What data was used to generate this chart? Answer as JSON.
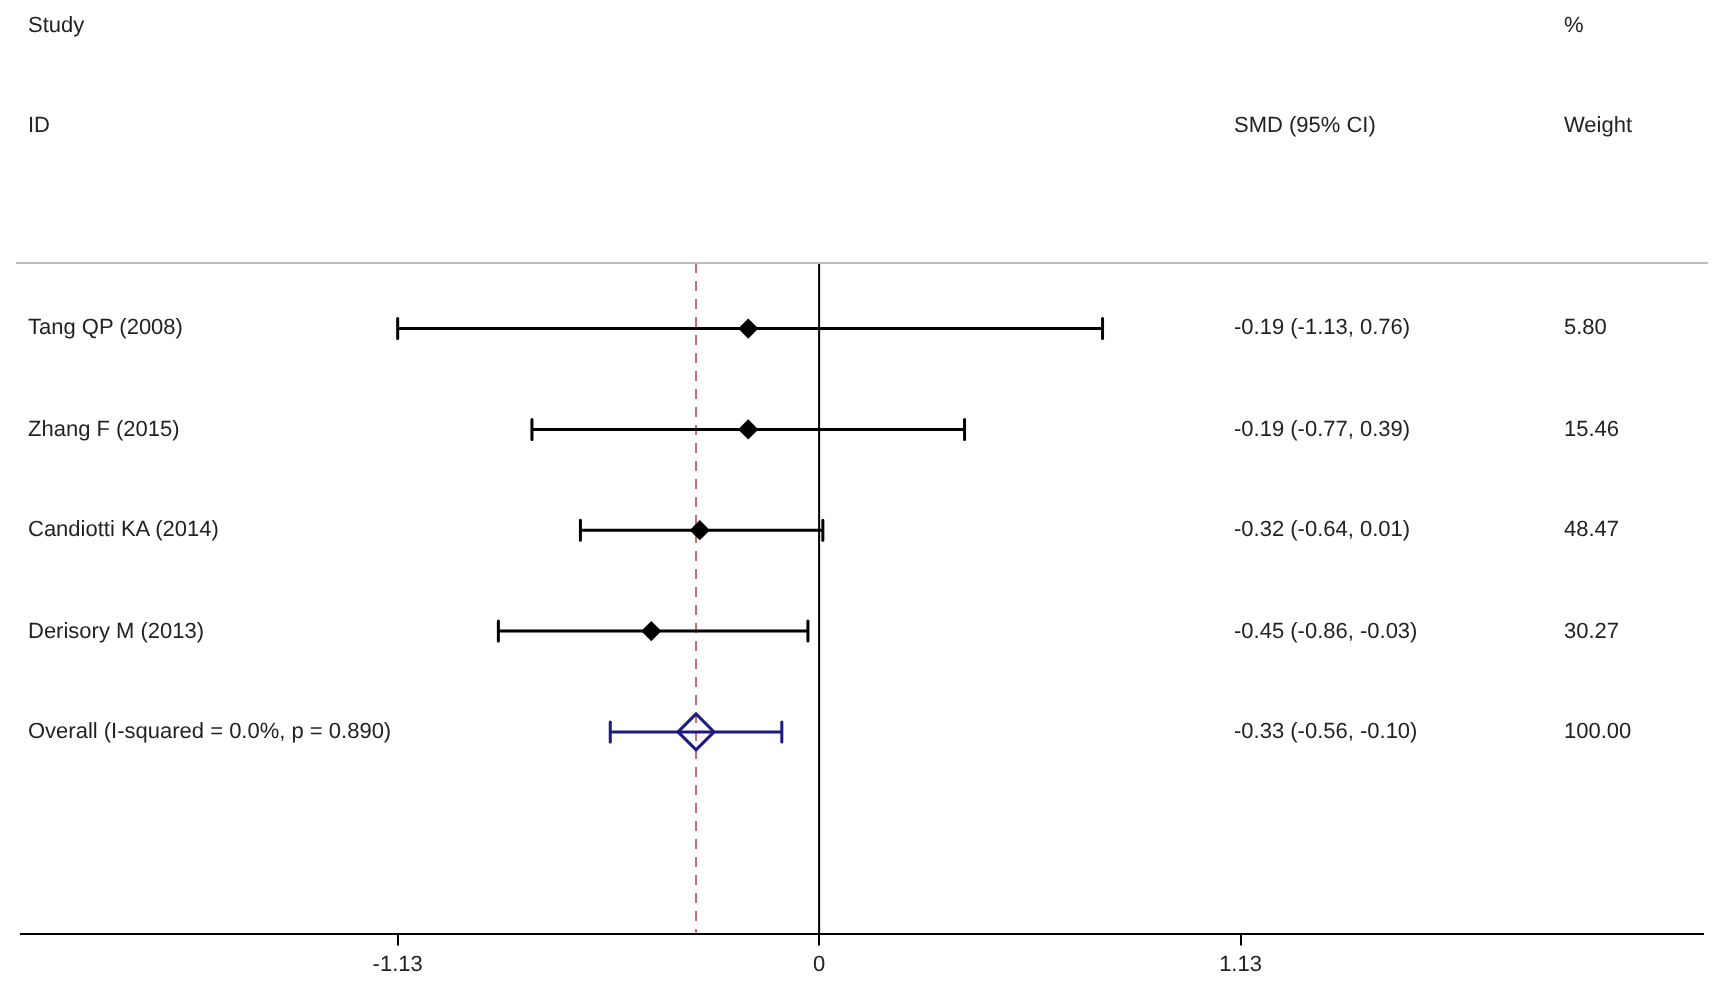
{
  "chart_data": {
    "type": "scatter",
    "orientation": "horizontal",
    "categories": [
      "Tang QP (2008)",
      "Zhang F (2015)",
      "Candiotti KA (2014)",
      "Derisory M (2013)",
      "Overall  (I-squared = 0.0%, p = 0.890)"
    ],
    "series": [
      {
        "marker": "diamond",
        "color": "#000000",
        "values": [
          -0.19,
          -0.19,
          -0.32,
          -0.45,
          null
        ],
        "errors": [
          [
            -1.13,
            0.76
          ],
          [
            -0.77,
            0.39
          ],
          [
            -0.64,
            0.01
          ],
          [
            -0.86,
            -0.03
          ],
          null
        ]
      },
      {
        "marker": "diamond",
        "color": "#1a1a80",
        "values": [
          null,
          null,
          null,
          null,
          -0.33
        ],
        "errors": [
          null,
          null,
          null,
          null,
          [
            -0.56,
            -0.1
          ]
        ]
      }
    ],
    "xlim": [
      -2.14,
      2.37
    ],
    "xticks": [
      -1.13,
      0,
      1.13
    ],
    "grid": false,
    "ref_lines": [
      {
        "axis": "x",
        "value": 0,
        "color": "#000000"
      },
      {
        "axis": "x",
        "value": -0.33,
        "color": "#c07070",
        "line_style": "dashed"
      }
    ],
    "annotations": [
      "Study",
      "ID",
      "SMD (95% CI)",
      "%",
      "Weight",
      "-0.19 (-1.13, 0.76)",
      "5.80",
      "-0.19 (-0.77, 0.39)",
      "15.46",
      "-0.32 (-0.64, 0.01)",
      "48.47",
      "-0.45 (-0.86, -0.03)",
      "30.27",
      "-0.33 (-0.56, -0.10)",
      "100.00"
    ]
  }
}
